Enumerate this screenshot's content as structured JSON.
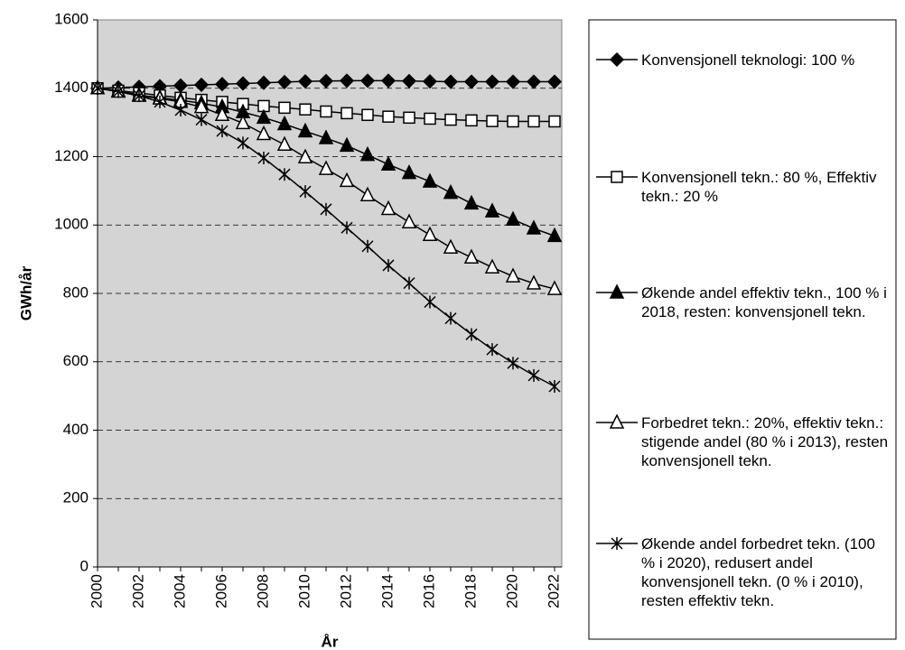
{
  "chart_data": {
    "type": "line",
    "x_label": "År",
    "y_label": "GWh/år",
    "x": [
      2000,
      2001,
      2002,
      2003,
      2004,
      2005,
      2006,
      2007,
      2008,
      2009,
      2010,
      2011,
      2012,
      2013,
      2014,
      2015,
      2016,
      2017,
      2018,
      2019,
      2020,
      2021,
      2022
    ],
    "xlim": [
      2000,
      2022
    ],
    "xticks": [
      2000,
      2002,
      2004,
      2006,
      2008,
      2010,
      2012,
      2014,
      2016,
      2018,
      2020,
      2022
    ],
    "ylim": [
      0,
      1600
    ],
    "yticks": [
      0,
      200,
      400,
      600,
      800,
      1000,
      1200,
      1400,
      1600
    ],
    "grid": true,
    "legend": "right",
    "series": [
      {
        "name": "Konvensjonell teknologi: 100 %",
        "color": "#000000",
        "marker": "diamond",
        "marker_filled": true,
        "values": [
          1400,
          1402,
          1404,
          1406,
          1408,
          1410,
          1412,
          1414,
          1416,
          1418,
          1420,
          1421,
          1422,
          1422,
          1422,
          1421,
          1420,
          1419,
          1419,
          1419,
          1419,
          1419,
          1419
        ]
      },
      {
        "name": "Konvensjonell tekn.: 80 %, Effektiv tekn.: 20 %",
        "color": "#000000",
        "marker": "square",
        "marker_filled": false,
        "values": [
          1400,
          1393,
          1386,
          1379,
          1372,
          1366,
          1360,
          1354,
          1348,
          1343,
          1338,
          1332,
          1327,
          1322,
          1317,
          1314,
          1311,
          1308,
          1306,
          1304,
          1303,
          1303,
          1303
        ]
      },
      {
        "name": "Økende andel effektiv tekn., 100 % i 2018, resten: konvensjonell tekn.",
        "color": "#000000",
        "marker": "triangle",
        "marker_filled": true,
        "values": [
          1400,
          1392,
          1380,
          1372,
          1365,
          1356,
          1345,
          1330,
          1314,
          1295,
          1274,
          1254,
          1232,
          1205,
          1177,
          1152,
          1127,
          1094,
          1063,
          1040,
          1016,
          990,
          968
        ]
      },
      {
        "name": "Forbedret tekn.: 20%, effektiv tekn.: stigende andel (80 % i 2013), resten konvensjonell tekn.",
        "color": "#000000",
        "marker": "triangle",
        "marker_filled": false,
        "values": [
          1400,
          1390,
          1378,
          1370,
          1360,
          1345,
          1322,
          1298,
          1266,
          1235,
          1198,
          1164,
          1129,
          1087,
          1047,
          1008,
          971,
          934,
          905,
          876,
          850,
          829,
          813
        ]
      },
      {
        "name": "Økende andel forbedret tekn. (100 % i 2020), redusert andel konvensjonell tekn. (0 % i 2010), resten effektiv tekn.",
        "color": "#000000",
        "marker": "star",
        "marker_filled": false,
        "values": [
          1400,
          1390,
          1378,
          1360,
          1336,
          1308,
          1275,
          1240,
          1196,
          1148,
          1098,
          1046,
          992,
          938,
          882,
          830,
          775,
          727,
          680,
          636,
          596,
          560,
          528
        ]
      }
    ]
  }
}
